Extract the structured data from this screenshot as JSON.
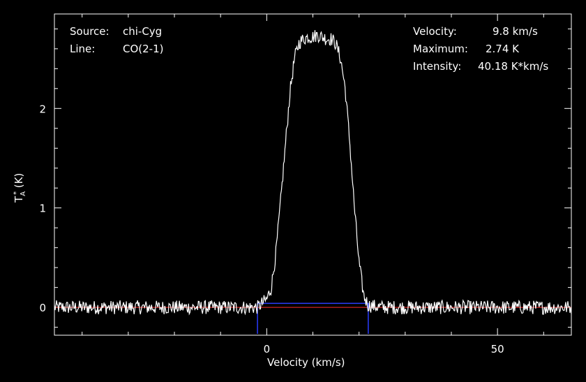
{
  "info_left": {
    "source_label": "Source:",
    "source_value": "chi-Cyg",
    "line_label": "Line:",
    "line_value": "CO(2-1)"
  },
  "info_right": {
    "velocity_label": "Velocity:",
    "velocity_value": "9.8 km/s",
    "maximum_label": "Maximum:",
    "maximum_value": "2.74 K",
    "intensity_label": "Intensity:",
    "intensity_value": "40.18 K*km/s"
  },
  "colors": {
    "background": "#000000",
    "spectrum": "#ffffff",
    "baseline": "#ff2a2a",
    "window": "#2a3cff"
  },
  "chart_data": {
    "type": "line",
    "title": "",
    "xlabel": "Velocity (km/s)",
    "ylabel_main": "T",
    "ylabel_sub": "A",
    "ylabel_sup": "*",
    "ylabel_unit": " (K)",
    "xlim": [
      -46,
      66
    ],
    "ylim": [
      -0.28,
      2.95
    ],
    "xticks": [
      0,
      50
    ],
    "xtick_labels": [
      "0",
      "50"
    ],
    "yticks": [
      0,
      1,
      2
    ],
    "ytick_labels": [
      "0",
      "1",
      "2"
    ],
    "grid": false,
    "series": [
      {
        "x": [
          -46,
          -40,
          -35,
          -30,
          -25,
          -20,
          -15,
          -10,
          -5,
          -2,
          0,
          1,
          2,
          3,
          4,
          5,
          6,
          7,
          8,
          9,
          10,
          11,
          12,
          13,
          14,
          15,
          16,
          17,
          18,
          19,
          20,
          21,
          22,
          25,
          30,
          35,
          40,
          45,
          50,
          55,
          60,
          66
        ],
        "y": [
          0.0,
          0.0,
          0.0,
          0.0,
          0.0,
          0.0,
          0.0,
          0.0,
          0.0,
          0.0,
          0.08,
          0.2,
          0.55,
          1.05,
          1.6,
          2.15,
          2.5,
          2.66,
          2.7,
          2.72,
          2.72,
          2.74,
          2.72,
          2.7,
          2.7,
          2.65,
          2.5,
          2.2,
          1.65,
          1.0,
          0.45,
          0.12,
          0.02,
          0.0,
          0.0,
          0.0,
          0.0,
          0.0,
          0.0,
          0.0,
          0.0,
          0.0
        ]
      }
    ],
    "baseline_y": 0.0,
    "window": {
      "x_start": -2,
      "x_end": 22,
      "top_y": 0.04
    }
  }
}
